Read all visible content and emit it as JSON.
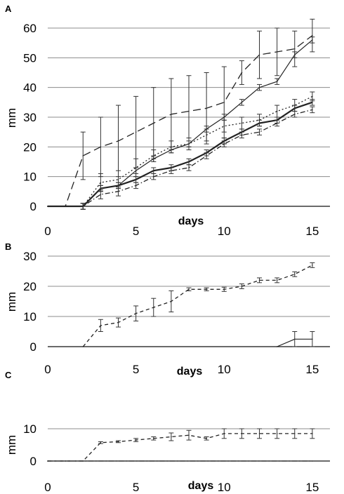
{
  "chart_data": [
    {
      "panel_label": "A",
      "type": "line",
      "xlabel": "days",
      "ylabel": "mm",
      "xlim": [
        0,
        16
      ],
      "ylim": [
        0,
        60
      ],
      "xticks": [
        "0",
        "5",
        "10",
        "15"
      ],
      "yticks": [
        "0",
        "10",
        "20",
        "30",
        "40",
        "50",
        "60"
      ],
      "grid": "horizontal",
      "legend": "none",
      "series": [
        {
          "style": "long-dash",
          "x": [
            0,
            1,
            2,
            3,
            4,
            5,
            6,
            7,
            8,
            9,
            10,
            11,
            12,
            13,
            14,
            15
          ],
          "values": [
            0,
            0,
            17,
            20,
            22,
            25,
            28,
            31,
            32,
            33,
            35,
            45,
            51,
            52,
            53,
            57.5
          ],
          "error": [
            null,
            null,
            8,
            10,
            12,
            12,
            12,
            12,
            12,
            12,
            12,
            4,
            8,
            8,
            6,
            5.5
          ]
        },
        {
          "style": "solid-thin",
          "x": [
            0,
            1,
            2,
            3,
            4,
            5,
            6,
            7,
            8,
            9,
            10,
            11,
            12,
            13,
            14,
            15
          ],
          "values": [
            0,
            0,
            0,
            6,
            7,
            12,
            16,
            19,
            21,
            26,
            30,
            35,
            40,
            42,
            51,
            56
          ],
          "error": [
            null,
            null,
            1,
            1,
            1,
            1,
            1,
            1,
            1,
            1,
            1,
            1,
            1,
            1,
            1,
            1
          ]
        },
        {
          "style": "dotted",
          "x": [
            0,
            1,
            2,
            3,
            4,
            5,
            6,
            7,
            8,
            9,
            10,
            11,
            12,
            13,
            14,
            15
          ],
          "values": [
            0,
            0,
            0,
            8,
            9,
            13,
            17,
            20,
            21,
            24,
            27,
            28,
            29,
            32,
            34,
            37
          ],
          "error": [
            null,
            null,
            1,
            3,
            3,
            3,
            2,
            2,
            2,
            2,
            2,
            2,
            2,
            2,
            2,
            1.5
          ]
        },
        {
          "style": "solid-bold",
          "x": [
            0,
            1,
            2,
            3,
            4,
            5,
            6,
            7,
            8,
            9,
            10,
            11,
            12,
            13,
            14,
            15
          ],
          "values": [
            0,
            0,
            0,
            6,
            7,
            9,
            12,
            13,
            15,
            18,
            22,
            25,
            28,
            29,
            33,
            35
          ],
          "error": [
            null,
            null,
            1,
            1,
            1,
            1,
            1,
            1,
            1,
            1,
            1,
            1,
            1,
            1,
            1,
            1
          ]
        },
        {
          "style": "dash-dot",
          "x": [
            0,
            1,
            2,
            3,
            4,
            5,
            6,
            7,
            8,
            9,
            10,
            11,
            12,
            13,
            14,
            15
          ],
          "values": [
            0,
            0,
            0,
            4,
            5,
            7,
            10,
            12,
            13,
            17,
            21,
            24,
            25,
            28,
            31,
            32.5
          ],
          "error": [
            null,
            null,
            1,
            1.5,
            1.5,
            1,
            1,
            1,
            1,
            1,
            1,
            1,
            1,
            1,
            1,
            1
          ]
        }
      ]
    },
    {
      "panel_label": "B",
      "type": "line",
      "xlabel": "days",
      "ylabel": "mm",
      "xlim": [
        0,
        16
      ],
      "ylim": [
        0,
        30
      ],
      "xticks": [
        "0",
        "5",
        "10",
        "15"
      ],
      "yticks": [
        "0",
        "10",
        "20",
        "30"
      ],
      "grid": "horizontal",
      "legend": "none",
      "series": [
        {
          "style": "short-dash",
          "x": [
            2,
            3,
            4,
            5,
            6,
            7,
            8,
            9,
            10,
            11,
            12,
            13,
            14,
            15
          ],
          "values": [
            0,
            7,
            8,
            11,
            13,
            15,
            19,
            19,
            19,
            20,
            22,
            22,
            24,
            27
          ],
          "error": [
            null,
            2,
            1.5,
            2.5,
            3,
            3.5,
            0.5,
            0.5,
            0.7,
            0.8,
            0.8,
            0.8,
            0.8,
            0.8
          ]
        },
        {
          "style": "solid-thin",
          "x": [
            13,
            14,
            15
          ],
          "values": [
            0,
            2.5,
            2.5
          ],
          "error": [
            null,
            2.5,
            2.5
          ]
        }
      ]
    },
    {
      "panel_label": "C",
      "type": "line",
      "xlabel": "days",
      "ylabel": "mm",
      "xlim": [
        0,
        16
      ],
      "ylim": [
        0,
        10
      ],
      "xticks": [
        "0",
        "5",
        "10",
        "15"
      ],
      "yticks": [
        "0",
        "10"
      ],
      "grid": "horizontal",
      "legend": "none",
      "series": [
        {
          "style": "short-dash",
          "x": [
            0,
            1,
            2,
            3,
            4,
            5,
            6,
            7,
            8,
            9,
            10,
            11,
            12,
            13,
            14,
            15
          ],
          "values": [
            0,
            0,
            0,
            5.7,
            6,
            6.5,
            7,
            7.5,
            8,
            7,
            8.5,
            8.5,
            8.5,
            8.5,
            8.5,
            8.5
          ],
          "error": [
            null,
            null,
            null,
            0.3,
            0.3,
            0.5,
            0.5,
            1.2,
            1.5,
            0.5,
            1.5,
            1.5,
            1.5,
            1.5,
            1.5,
            1.5
          ]
        },
        {
          "style": "dash-dot",
          "x": [
            0,
            15
          ],
          "values": [
            0,
            0
          ],
          "error": [
            null,
            null
          ]
        }
      ]
    }
  ]
}
